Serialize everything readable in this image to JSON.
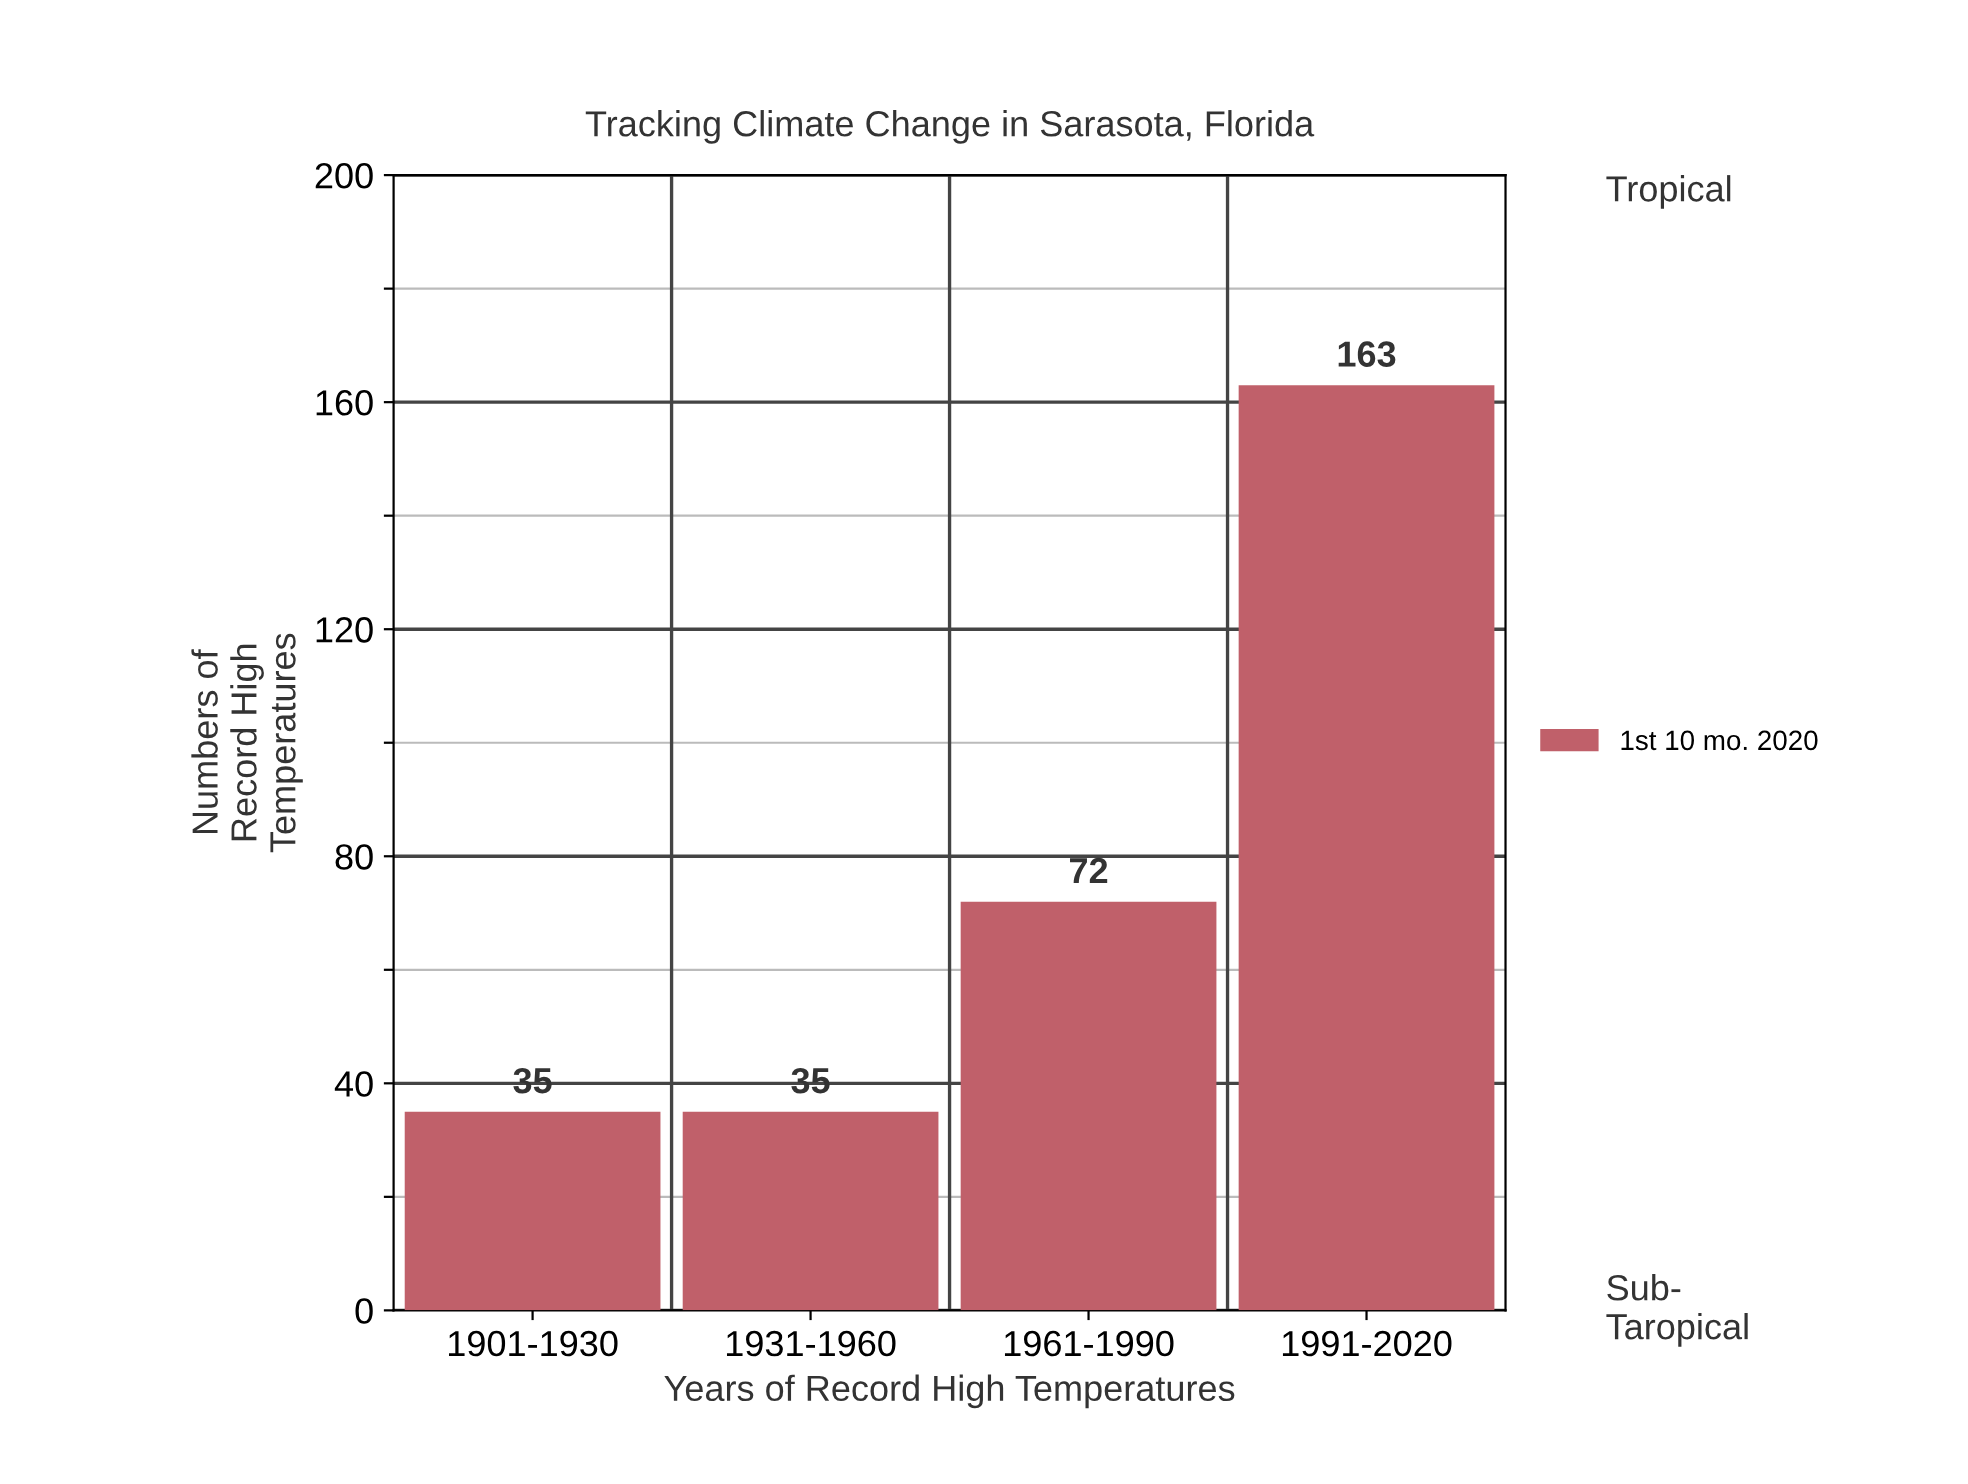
{
  "chart_data": {
    "type": "bar",
    "title": "Tracking Climate Change in Sarasota, Florida",
    "xlabel": "Years of Record High Temperatures",
    "ylabel": "Numbers of\nRecord High\nTemperatures",
    "categories": [
      "1901-1930",
      "1931-1960",
      "1961-1990",
      "1991-2020"
    ],
    "series": [
      {
        "name": "1st 10 mo. 2020",
        "color": "#c0606a",
        "values": [
          35,
          35,
          72,
          163
        ]
      }
    ],
    "ylim": [
      0,
      200
    ],
    "yticks": [
      0,
      {
        "value": 20,
        "label": null
      },
      40,
      {
        "value": 60,
        "label": null
      },
      80,
      {
        "value": 100,
        "label": null
      },
      120,
      {
        "value": 140,
        "label": null
      },
      160,
      {
        "value": 180,
        "label": null
      },
      200
    ],
    "grid": true,
    "legend": "right",
    "data_labels": true,
    "annotations": [
      "Tropical",
      "Sub-\nTaropical"
    ]
  }
}
